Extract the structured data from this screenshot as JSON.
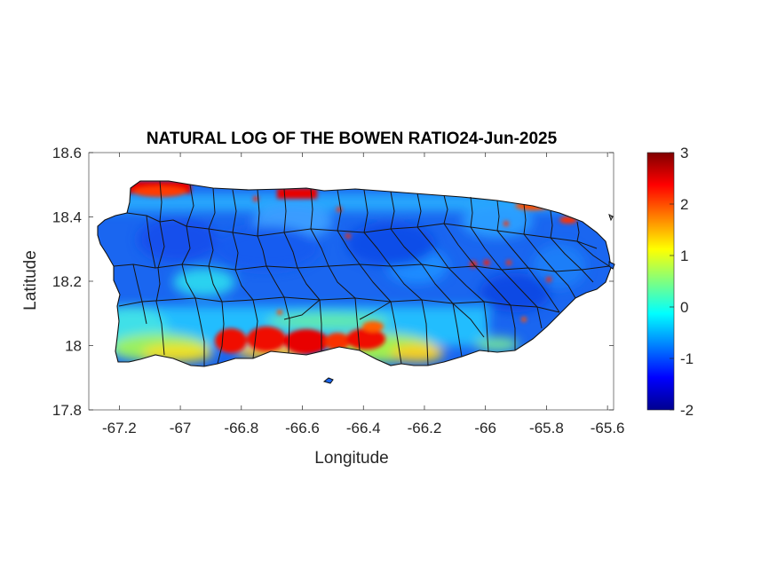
{
  "figure": {
    "title": "NATURAL LOG OF THE BOWEN RATIO24-Jun-2025",
    "xlabel": "Longitude",
    "ylabel": "Latitude"
  },
  "axes": {
    "xlim": [
      -67.3,
      -65.58
    ],
    "ylim": [
      17.8,
      18.6
    ],
    "xticks": [
      -67.2,
      -67,
      -66.8,
      -66.6,
      -66.4,
      -66.2,
      -66,
      -65.8,
      -65.6
    ],
    "xtick_labels": [
      "-67.2",
      "-67",
      "-66.8",
      "-66.6",
      "-66.4",
      "-66.2",
      "-66",
      "-65.8",
      "-65.6"
    ],
    "yticks": [
      17.8,
      18,
      18.2,
      18.4,
      18.6
    ],
    "ytick_labels": [
      "17.8",
      "18",
      "18.2",
      "18.4",
      "18.6"
    ]
  },
  "colorbar": {
    "colormap": "jet",
    "range": [
      -2,
      3
    ],
    "ticks": [
      3,
      2,
      1,
      0,
      -1,
      -2
    ],
    "tick_labels": [
      "3",
      "2",
      "1",
      "0",
      "-1",
      "-2"
    ]
  },
  "chart_data": {
    "type": "heatmap",
    "region": "Puerto Rico",
    "variable": "ln(Bowen ratio)",
    "typical_interior_value": -1,
    "high_value_zones": [
      {
        "area": "northwest coast",
        "lon_range": [
          -67.1,
          -66.98
        ],
        "lat": 18.49,
        "value": 2.6
      },
      {
        "area": "north coast",
        "lon_range": [
          -66.65,
          -66.55
        ],
        "lat": 18.48,
        "value": 2.5
      },
      {
        "area": "south coast",
        "lon_range": [
          -66.85,
          -66.5
        ],
        "lat": 17.99,
        "value": 2.6
      },
      {
        "area": "south coast",
        "lon_range": [
          -66.45,
          -66.35
        ],
        "lat": 18.02,
        "value": 2.4
      },
      {
        "area": "southwest coast",
        "lon_range": [
          -67.2,
          -66.9
        ],
        "lat": 17.98,
        "value": 1.2
      }
    ]
  }
}
